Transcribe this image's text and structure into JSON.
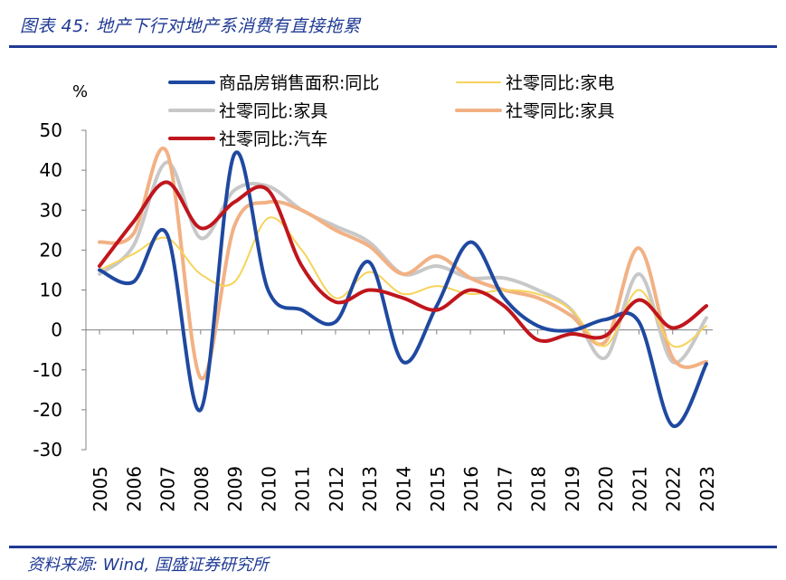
{
  "figure": {
    "title": "图表 45:  地产下行对地产系消费有直接拖累",
    "source": "资料来源:  Wind,  国盛证券研究所",
    "unit": "%"
  },
  "chart_data": {
    "type": "line",
    "categories": [
      "2005",
      "2006",
      "2007",
      "2008",
      "2009",
      "2010",
      "2011",
      "2012",
      "2013",
      "2014",
      "2015",
      "2016",
      "2017",
      "2018",
      "2019",
      "2020",
      "2021",
      "2022",
      "2023"
    ],
    "ylim": [
      -30,
      50
    ],
    "yticks": [
      "50",
      "40",
      "30",
      "20",
      "10",
      "0",
      "-10",
      "-20",
      "-30"
    ],
    "grid": false,
    "legend_position": "top",
    "series": [
      {
        "name": "商品房销售面积:同比",
        "color": "#1f49a0",
        "width": 4,
        "values": [
          15,
          12,
          24,
          -20,
          44,
          10,
          5,
          2,
          17,
          -8,
          6,
          22,
          8,
          1,
          -0.1,
          2.6,
          2,
          -24,
          -8.5
        ]
      },
      {
        "name": "社零同比:家电",
        "color": "#f7d35a",
        "width": 2,
        "values": [
          15,
          19,
          23,
          14,
          12,
          28,
          20,
          8,
          14.5,
          9,
          11,
          9,
          10,
          9,
          5,
          -4,
          10,
          -4,
          1
        ]
      },
      {
        "name": "社零同比:家具",
        "color": "#c8c8c8",
        "width": 4,
        "values": [
          14,
          21,
          42,
          23,
          35,
          36,
          30,
          26,
          22,
          14,
          16,
          13,
          13,
          10,
          5,
          -7,
          14,
          -8,
          3
        ]
      },
      {
        "name": "社零同比:家具",
        "color": "#f2b184",
        "width": 4,
        "values": [
          22,
          24,
          44.5,
          -12,
          26,
          32,
          30,
          25,
          21,
          14,
          18.5,
          13,
          10,
          8,
          3.5,
          -3,
          20.5,
          -7,
          -8
        ]
      },
      {
        "name": "社零同比:汽车",
        "color": "#c0161d",
        "width": 4,
        "values": [
          16,
          27,
          37,
          25.5,
          32,
          35,
          16,
          7,
          10,
          8,
          5,
          10,
          6,
          -2.5,
          -1,
          -1.5,
          7.5,
          0.5,
          6
        ]
      }
    ]
  }
}
